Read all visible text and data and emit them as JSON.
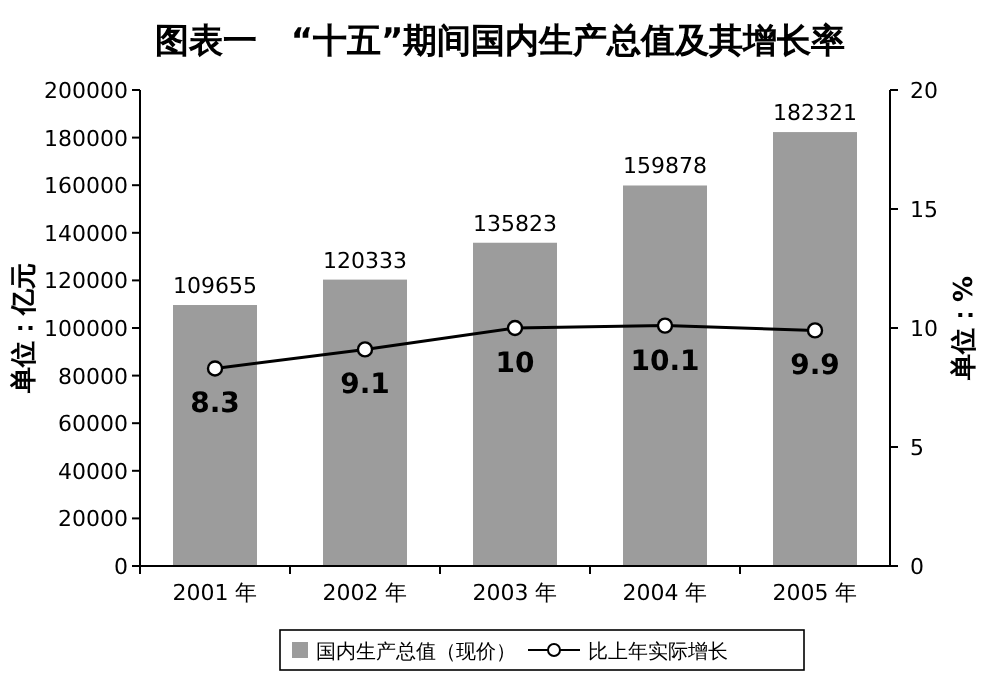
{
  "chart_data": {
    "type": "bar",
    "title": "图表一　“十五”期间国内生产总值及其增长率",
    "ylabel": "单位：亿元",
    "y2label": "单位：%",
    "categories": [
      "2001 年",
      "2002 年",
      "2003 年",
      "2004 年",
      "2005 年"
    ],
    "series": [
      {
        "name": "国内生产总值（现价）",
        "color": "#9c9c9c",
        "values": [
          109655,
          120333,
          135823,
          159878,
          182321
        ]
      },
      {
        "name": "比上年实际增长",
        "type": "line",
        "axis": "y2",
        "color": "#000000",
        "values": [
          8.3,
          9.1,
          10,
          10.1,
          9.9
        ]
      }
    ],
    "ylim": [
      0,
      200000
    ],
    "yticks": [
      0,
      20000,
      40000,
      60000,
      80000,
      100000,
      120000,
      140000,
      160000,
      180000,
      200000
    ],
    "y2lim": [
      0,
      20
    ],
    "y2ticks": [
      0,
      5,
      10,
      15,
      20
    ],
    "data_labels": true,
    "legend": "bottom",
    "marker": "circle",
    "line_style": "solid",
    "grid": false
  }
}
